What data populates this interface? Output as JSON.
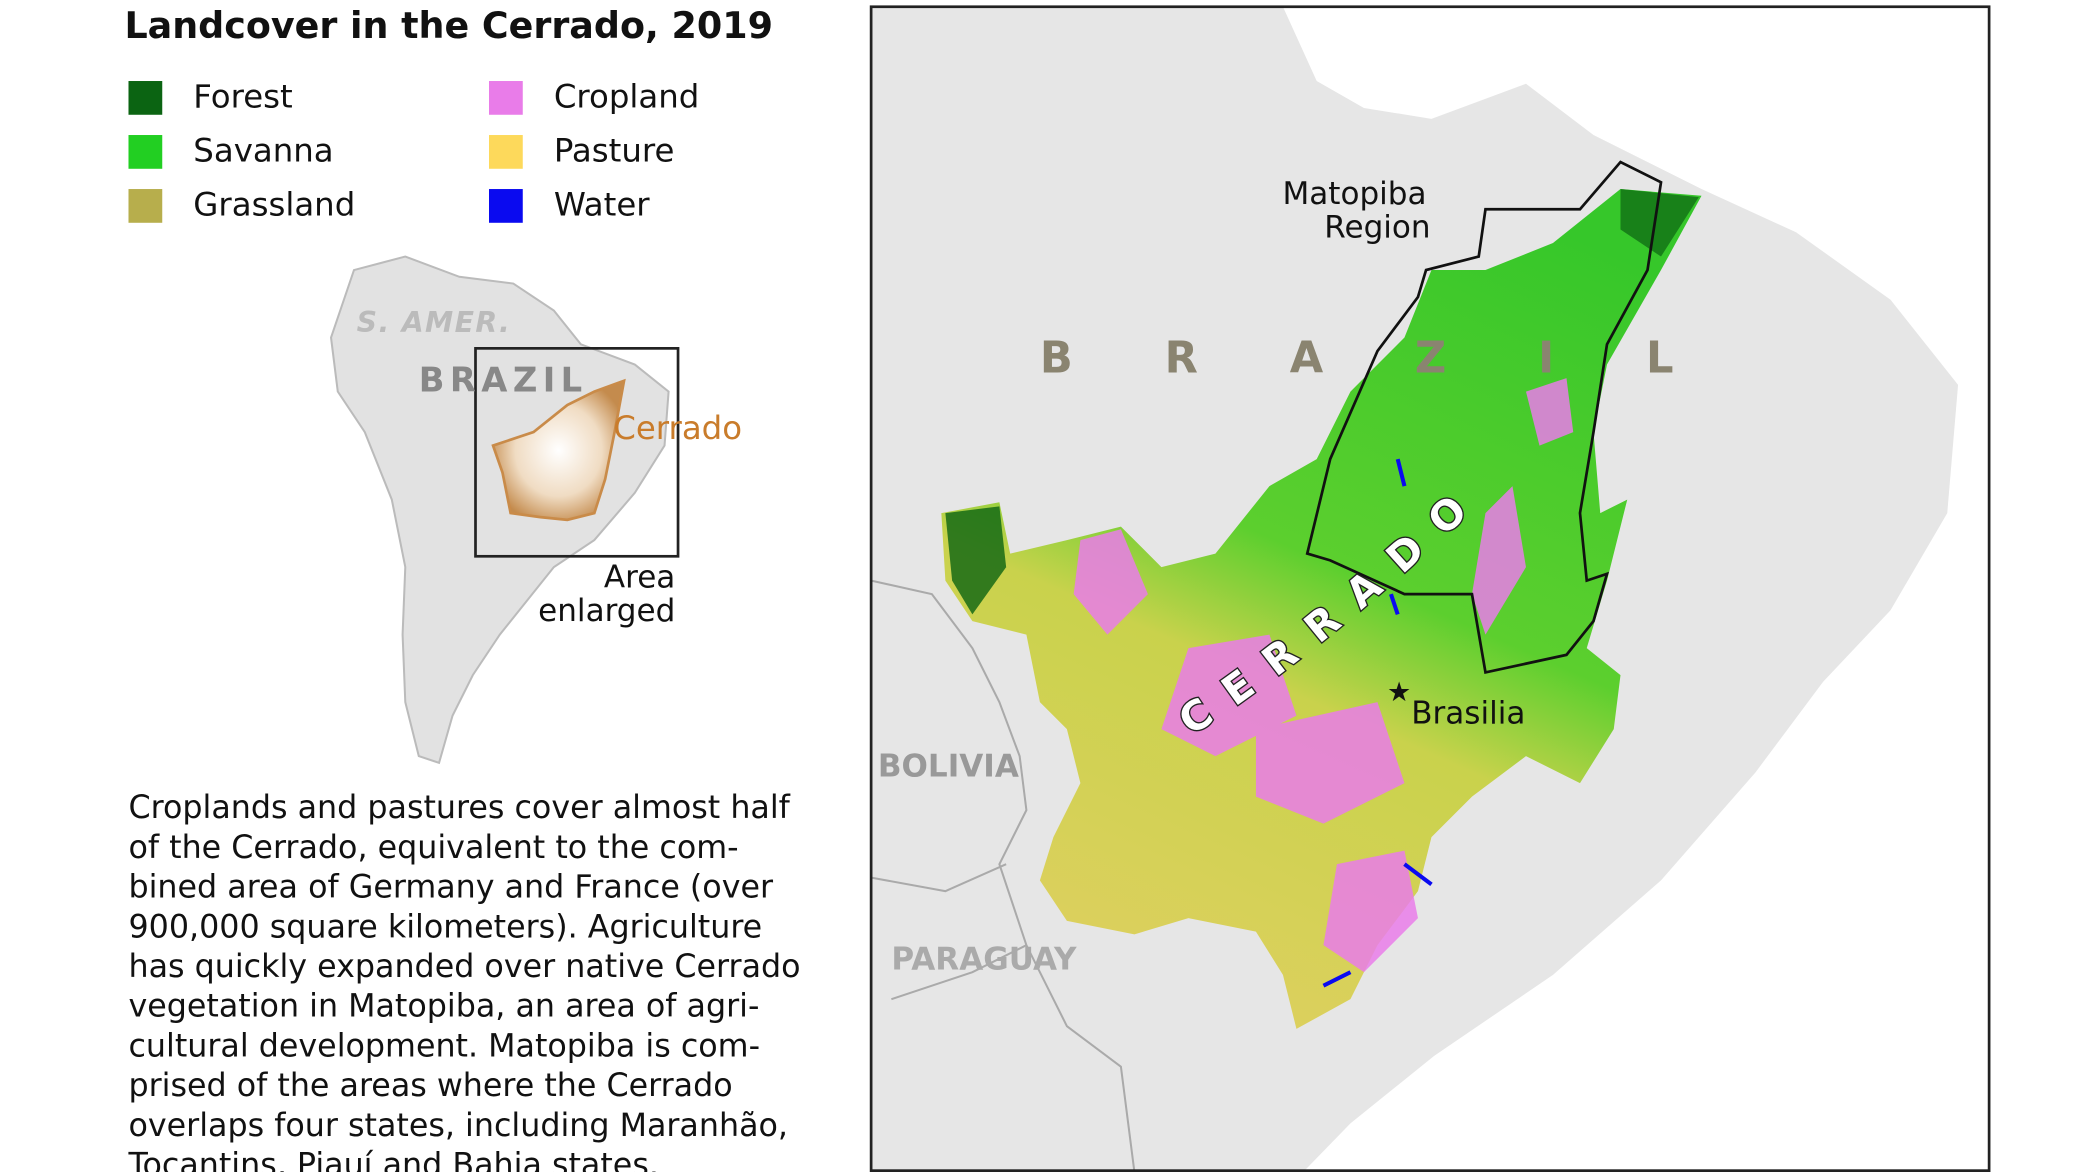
{
  "title": "Landcover in the Cerrado, 2019",
  "legend": [
    {
      "label": "Forest",
      "color": "#0b6412"
    },
    {
      "label": "Savanna",
      "color": "#22cf22"
    },
    {
      "label": "Grassland",
      "color": "#b7ae4c"
    },
    {
      "label": "Cropland",
      "color": "#e97ce9"
    },
    {
      "label": "Pasture",
      "color": "#fdd95b"
    },
    {
      "label": "Water",
      "color": "#0a0af0"
    }
  ],
  "inset": {
    "continent": "S. AMER.",
    "country": "BRAZIL",
    "region": "Cerrado",
    "box_label": [
      "Area",
      "enlarged"
    ]
  },
  "map": {
    "country": "BRAZIL",
    "region": "CERRADO",
    "subregion": [
      "Matopiba",
      "Region"
    ],
    "city": "Brasilia",
    "neighbors": [
      "BOLIVIA",
      "PARAGUAY"
    ]
  },
  "description": [
    "Croplands and pastures cover almost half",
    "of the Cerrado, equivalent to the com-",
    "bined area of Germany and France (over",
    "900,000 square kilometers). Agriculture",
    "has quickly expanded over native Cerrado",
    "vegetation in Matopiba, an area of agri-",
    "cultural development. Matopiba is com-",
    "prised of the areas where the Cerrado",
    "overlaps four states, including Maranhão,",
    "Tocantins, Piauí and Bahia states."
  ]
}
